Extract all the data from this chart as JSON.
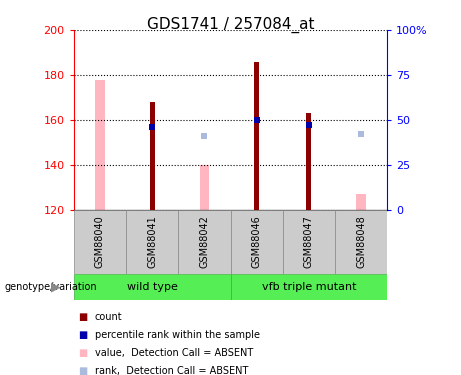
{
  "title": "GDS1741 / 257084_at",
  "samples": [
    "GSM88040",
    "GSM88041",
    "GSM88042",
    "GSM88046",
    "GSM88047",
    "GSM88048"
  ],
  "ylim_left": [
    120,
    200
  ],
  "ylim_right": [
    0,
    100
  ],
  "yticks_left": [
    120,
    140,
    160,
    180,
    200
  ],
  "yticks_right": [
    0,
    25,
    50,
    75,
    100
  ],
  "ytick_labels_right": [
    "0",
    "25",
    "50",
    "75",
    "100%"
  ],
  "count_values": [
    null,
    168,
    null,
    186,
    163,
    null
  ],
  "rank_values": [
    null,
    157,
    null,
    160,
    158,
    null
  ],
  "absent_value_values": [
    178,
    null,
    140,
    null,
    null,
    127
  ],
  "absent_rank_values": [
    null,
    null,
    153,
    null,
    null,
    154
  ],
  "count_color": "#8B0000",
  "rank_color": "#0000AA",
  "absent_value_color": "#FFB6C1",
  "absent_rank_color": "#AABBDD",
  "wt_group_color": "#55EE55",
  "vm_group_color": "#55EE55",
  "sample_box_color": "#CCCCCC",
  "fig_width": 4.61,
  "fig_height": 3.75,
  "dpi": 100
}
